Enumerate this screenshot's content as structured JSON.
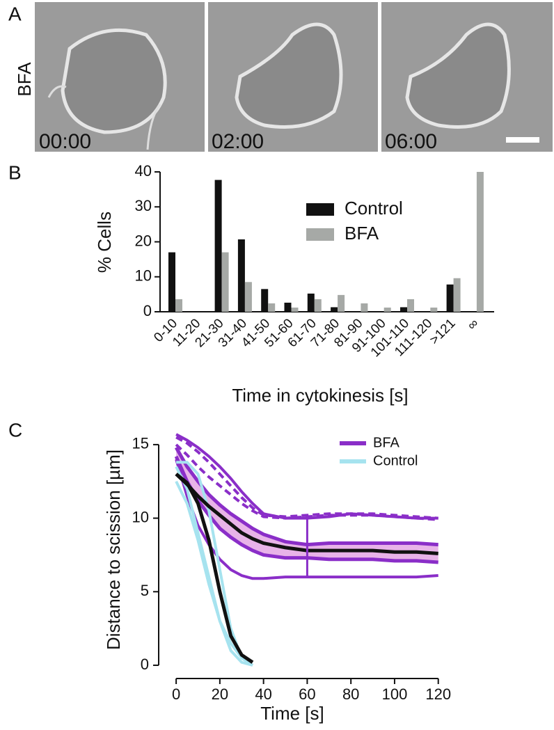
{
  "panel_a": {
    "label": "A",
    "condition": "BFA",
    "timestamps": [
      "00:00",
      "02:00",
      "06:00"
    ]
  },
  "chart_data": [
    {
      "type": "bar",
      "label": "B",
      "y_label": "% Cells",
      "x_label": "Time in cytokinesis [s]",
      "categories": [
        "0-10",
        "11-20",
        "21-30",
        "31-40",
        "41-50",
        "51-60",
        "61-70",
        "71-80",
        "81-90",
        "91-100",
        "101-110",
        "111-120",
        ">121",
        "∞"
      ],
      "series": [
        {
          "name": "Control",
          "color": "#111111",
          "values": [
            17,
            0,
            37.7,
            20.7,
            6.5,
            2.6,
            5.2,
            1.3,
            0,
            0,
            1.3,
            0,
            7.8,
            0
          ]
        },
        {
          "name": "BFA",
          "color": "#a6a9a6",
          "values": [
            3.6,
            0,
            17,
            8.5,
            2.4,
            1.2,
            3.6,
            4.8,
            2.4,
            1.2,
            3.6,
            1.2,
            9.6,
            40
          ]
        }
      ],
      "ylim": [
        0,
        40
      ],
      "yticks": [
        0,
        10,
        20,
        30,
        40
      ]
    },
    {
      "type": "line",
      "label": "C",
      "y_label": "Distance to scission [µm]",
      "x_label": "Time [s]",
      "x": [
        0,
        5,
        10,
        15,
        20,
        25,
        30,
        35,
        40,
        50,
        60,
        70,
        80,
        90,
        100,
        110,
        120
      ],
      "series": [
        {
          "name": "BFA",
          "color": "#8a2ec8",
          "values": [
            15.7,
            15.3,
            14.8,
            14.2,
            13.5,
            12.7,
            11.8,
            11.0,
            10.3,
            10.0,
            10.0,
            10.1,
            10.3,
            10.2,
            10.1,
            10.0,
            10.0
          ]
        },
        {
          "color": "#8a2ec8",
          "dashed": true,
          "values": [
            15.5,
            15.1,
            14.5,
            13.8,
            13.0,
            12.2,
            11.4,
            10.7,
            10.2,
            10.1,
            10.2,
            10.3,
            10.3,
            10.3,
            10.2,
            10.1,
            10.0
          ]
        },
        {
          "color": "#8a2ec8",
          "dashed": true,
          "values": [
            15.0,
            14.3,
            13.5,
            12.8,
            12.2,
            11.6,
            11.0,
            10.5,
            10.1,
            10.0,
            10.1,
            10.2,
            10.2,
            10.2,
            10.1,
            10.0,
            9.9
          ]
        },
        {
          "color": "#8a2ec8",
          "values": [
            14.0,
            11.5,
            9.5,
            8.2,
            7.2,
            6.5,
            6.1,
            5.9,
            5.9,
            6.0,
            6.0,
            6.0,
            6.0,
            6.0,
            6.0,
            6.0,
            6.1
          ]
        },
        {
          "name": "Control",
          "color": "#a6e3ef",
          "values": [
            13.8,
            13.8,
            13.0,
            10.5,
            6.5,
            2.5,
            0.5,
            0.0,
            null,
            null,
            null,
            null,
            null,
            null,
            null,
            null,
            null
          ]
        },
        {
          "color": "#a6e3ef",
          "values": [
            13.5,
            12.0,
            9.0,
            6.0,
            3.0,
            1.0,
            0.2,
            0.0,
            null,
            null,
            null,
            null,
            null,
            null,
            null,
            null,
            null
          ]
        },
        {
          "color": "#a6e3ef",
          "values": [
            12.5,
            11.0,
            8.5,
            5.5,
            3.0,
            1.5,
            0.5,
            0.0,
            null,
            null,
            null,
            null,
            null,
            null,
            null,
            null,
            null
          ]
        },
        {
          "color": "#111111",
          "values": [
            13.0,
            12.3,
            11.5,
            10.8,
            10.2,
            9.6,
            9.0,
            8.6,
            8.3,
            8.0,
            7.8,
            7.8,
            7.8,
            7.8,
            7.7,
            7.7,
            7.6
          ]
        },
        {
          "color": "#111111",
          "values": [
            13.0,
            12.4,
            11.0,
            8.5,
            5.0,
            2.0,
            0.7,
            0.2,
            null,
            null,
            null,
            null,
            null,
            null,
            null,
            null,
            null
          ]
        }
      ],
      "bands": [
        {
          "color": "#e8b3e8",
          "line_color": "#8a2ec8",
          "high": [
            14.8,
            13.5,
            12.5,
            11.6,
            10.9,
            10.3,
            9.8,
            9.3,
            8.9,
            8.4,
            8.2,
            8.3,
            8.3,
            8.3,
            8.3,
            8.3,
            8.2
          ],
          "low": [
            14.2,
            12.5,
            11.2,
            10.2,
            9.3,
            8.7,
            8.2,
            7.8,
            7.5,
            7.3,
            7.3,
            7.2,
            7.2,
            7.2,
            7.1,
            7.1,
            7.0
          ]
        }
      ],
      "error_bars": [
        {
          "x": 60,
          "low": 6.0,
          "high": 10.2,
          "color": "#8a2ec8"
        }
      ],
      "xlim": [
        -8,
        122
      ],
      "ylim": [
        -0.9,
        15.8
      ],
      "xticks": [
        0,
        20,
        40,
        60,
        80,
        100,
        120
      ],
      "yticks": [
        0,
        5,
        10,
        15
      ]
    }
  ]
}
